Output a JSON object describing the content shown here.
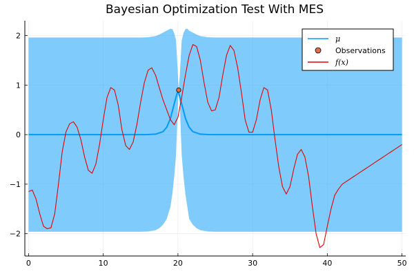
{
  "chart_data": {
    "type": "line",
    "title": "Bayesian Optimization Test With MES",
    "xlabel": "",
    "ylabel": "",
    "xlim": [
      -0.5,
      50.5
    ],
    "ylim": [
      -2.45,
      2.3
    ],
    "xticks": [
      0,
      10,
      20,
      30,
      40,
      50
    ],
    "yticks": [
      -2,
      -1,
      0,
      1,
      2
    ],
    "xtick_labels": [
      "0",
      "10",
      "20",
      "30",
      "40",
      "50"
    ],
    "ytick_labels": [
      "−2",
      "−1",
      "0",
      "1",
      "2"
    ],
    "grid": true,
    "legend_position": "top-right",
    "series": [
      {
        "name": "μ",
        "kind": "line",
        "color": "#009af9",
        "x": [
          0,
          15,
          16,
          17,
          18,
          18.5,
          19,
          19.5,
          20,
          20.5,
          21,
          21.5,
          22,
          23,
          24,
          25,
          50
        ],
        "y": [
          0,
          0,
          0.002,
          0.01,
          0.06,
          0.15,
          0.33,
          0.62,
          0.9,
          0.62,
          0.33,
          0.15,
          0.06,
          0.01,
          0.002,
          0,
          0
        ]
      },
      {
        "name": "Observations",
        "kind": "scatter",
        "color": "#e26f46",
        "x": [
          20.1
        ],
        "y": [
          0.9
        ]
      },
      {
        "name": "f(x)",
        "kind": "line",
        "color": "#e30000",
        "x": [
          0,
          0.5,
          1,
          1.5,
          2,
          2.5,
          3,
          3.5,
          4,
          4.5,
          5,
          5.5,
          6,
          6.5,
          7,
          7.5,
          8,
          8.5,
          9,
          9.5,
          10,
          10.5,
          11,
          11.5,
          12,
          12.5,
          13,
          13.5,
          14,
          14.5,
          15,
          15.5,
          16,
          16.5,
          17,
          17.5,
          18,
          18.5,
          19,
          19.5,
          20,
          20.5,
          21,
          21.5,
          22,
          22.5,
          23,
          23.5,
          24,
          24.5,
          25,
          25.5,
          26,
          26.5,
          27,
          27.5,
          28,
          28.5,
          29,
          29.5,
          30,
          30.5,
          31,
          31.5,
          32,
          32.5,
          33,
          33.5,
          34,
          34.5,
          35,
          35.5,
          36,
          36.5,
          37,
          37.5,
          38,
          38.5,
          39,
          39.5,
          40,
          40.5,
          41,
          41.5,
          42,
          42.5,
          43,
          43.5,
          44,
          44.5,
          45,
          45.5,
          46,
          46.5,
          47,
          47.5,
          48,
          48.5,
          49,
          49.5,
          50
        ],
        "y": [
          -1.15,
          -1.12,
          -1.3,
          -1.6,
          -1.85,
          -1.9,
          -1.88,
          -1.6,
          -1.0,
          -0.35,
          0.05,
          0.22,
          0.26,
          0.15,
          -0.1,
          -0.45,
          -0.72,
          -0.78,
          -0.6,
          -0.2,
          0.3,
          0.75,
          0.95,
          0.9,
          0.6,
          0.1,
          -0.22,
          -0.3,
          -0.15,
          0.2,
          0.65,
          1.05,
          1.3,
          1.35,
          1.2,
          0.95,
          0.7,
          0.5,
          0.3,
          0.2,
          0.35,
          0.75,
          1.2,
          1.6,
          1.82,
          1.78,
          1.5,
          1.05,
          0.65,
          0.48,
          0.5,
          0.75,
          1.2,
          1.6,
          1.8,
          1.7,
          1.35,
          0.85,
          0.3,
          0.05,
          0.05,
          0.3,
          0.7,
          0.95,
          0.9,
          0.5,
          -0.1,
          -0.65,
          -1.05,
          -1.2,
          -1.05,
          -0.7,
          -0.4,
          -0.3,
          -0.45,
          -0.85,
          -1.45,
          -2.0,
          -2.28,
          -2.22,
          -1.85,
          -1.5,
          -1.22,
          -1.1,
          -1.0,
          -0.95,
          -0.9,
          -0.85,
          -0.8,
          -0.75,
          -0.7,
          -0.65,
          -0.6,
          -0.55,
          -0.5,
          -0.45,
          -0.4,
          -0.35,
          -0.3,
          -0.25,
          -0.2
        ]
      }
    ],
    "band": {
      "color": "#009af9",
      "opacity": 0.5,
      "x": [
        0,
        15,
        16,
        17,
        17.5,
        18,
        18.5,
        19,
        19.25,
        19.5,
        19.75,
        20,
        20.1,
        20.25,
        20.5,
        20.75,
        21,
        21.25,
        21.5,
        22,
        22.5,
        23,
        24,
        25,
        50
      ],
      "upper": [
        1.96,
        1.96,
        1.965,
        1.99,
        2.02,
        2.06,
        2.1,
        2.14,
        2.13,
        2.05,
        1.9,
        1.2,
        0.91,
        1.2,
        1.9,
        2.05,
        2.13,
        2.14,
        2.1,
        2.06,
        2.02,
        1.99,
        1.965,
        1.96,
        1.96
      ],
      "lower": [
        -1.96,
        -1.96,
        -1.955,
        -1.93,
        -1.89,
        -1.82,
        -1.7,
        -1.45,
        -1.2,
        -0.85,
        -0.4,
        0.6,
        0.89,
        0.6,
        -0.4,
        -0.85,
        -1.2,
        -1.45,
        -1.7,
        -1.82,
        -1.89,
        -1.93,
        -1.955,
        -1.96,
        -1.96
      ]
    },
    "legend": [
      {
        "label": "μ",
        "style": "line",
        "color": "#009af9"
      },
      {
        "label": "Observations",
        "style": "marker",
        "color": "#e26f46"
      },
      {
        "label": "f(x)",
        "style": "line",
        "color": "#e30000"
      }
    ]
  }
}
